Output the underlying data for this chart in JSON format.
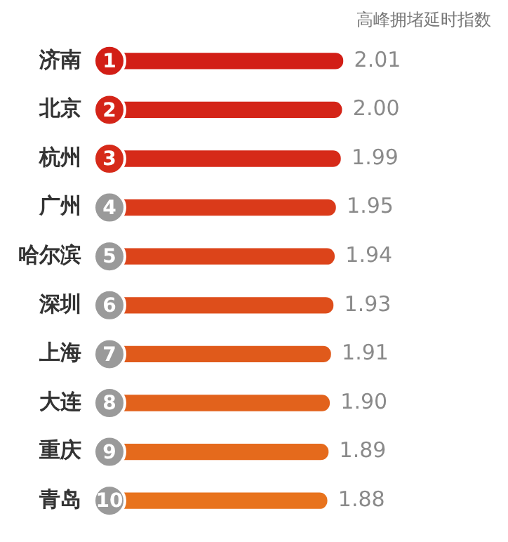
{
  "chart_data": {
    "type": "bar",
    "orientation": "horizontal",
    "title": "高峰拥堵延时指数",
    "categories": [
      "济南",
      "北京",
      "杭州",
      "广州",
      "哈尔滨",
      "深圳",
      "上海",
      "大连",
      "重庆",
      "青岛"
    ],
    "values": [
      2.01,
      2.0,
      1.99,
      1.95,
      1.94,
      1.93,
      1.91,
      1.9,
      1.89,
      1.88
    ],
    "colors": [
      "#d21e16",
      "#d42418",
      "#d62a19",
      "#da3a1a",
      "#dc441a",
      "#de4e1b",
      "#e05a1b",
      "#e2621c",
      "#e56a1c",
      "#e8731d"
    ],
    "value_labels": [
      "2.01",
      "2.00",
      "1.99",
      "1.95",
      "1.94",
      "1.93",
      "1.91",
      "1.90",
      "1.89",
      "1.88"
    ],
    "tick_labels": "y",
    "legend": false,
    "annotations": [
      "1",
      "2",
      "3",
      "4",
      "5",
      "6",
      "7",
      "8",
      "9",
      "10"
    ]
  }
}
